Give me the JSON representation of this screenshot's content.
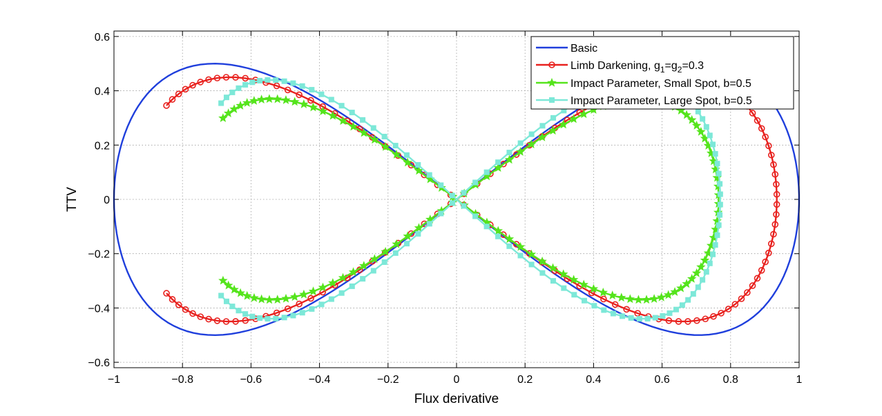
{
  "chart_data": {
    "type": "line",
    "title": "",
    "xlabel": "Flux derivative",
    "ylabel": "TTV",
    "xlim": [
      -1,
      1
    ],
    "ylim": [
      -0.62,
      0.62
    ],
    "grid": true,
    "legend_position": "top-right",
    "x_ticks": [
      -1,
      -0.8,
      -0.6,
      -0.4,
      -0.2,
      0,
      0.2,
      0.4,
      0.6,
      0.8,
      1
    ],
    "y_ticks": [
      -0.6,
      -0.4,
      -0.2,
      0,
      0.2,
      0.4,
      0.6
    ],
    "x_tick_labels": [
      "−1",
      "−0.8",
      "−0.6",
      "−0.4",
      "−0.2",
      "0",
      "0.2",
      "0.4",
      "0.6",
      "0.8",
      "1"
    ],
    "y_tick_labels": [
      "−0.6",
      "−0.4",
      "−0.2",
      "0",
      "0.2",
      "0.4",
      "0.6"
    ],
    "series": [
      {
        "name": "Basic",
        "legend": {
          "text": "Basic"
        },
        "color": "#1f3fdc",
        "marker": "none",
        "curve": {
          "kind": "param",
          "ax": 1.0,
          "ay": 0.5,
          "t0": 0,
          "t1": 6.2832,
          "n": 200
        }
      },
      {
        "name": "Limb Darkening",
        "legend": {
          "text": "Limb Darkening, g",
          "sub1": "1",
          "mid": "=g",
          "sub2": "2",
          "tail": "=0.3"
        },
        "color": "#e8211e",
        "marker": "circle",
        "curve": {
          "kind": "param",
          "ax": 0.935,
          "ay": 0.45,
          "t0": 0.438,
          "t1": 5.845,
          "n": 132
        }
      },
      {
        "name": "Impact Parameter, Small Spot, b=0.5",
        "legend": {
          "text": "Impact Parameter, Small Spot, b=0.5"
        },
        "color": "#55e41c",
        "marker": "star",
        "curve": {
          "kind": "param",
          "ax": 0.765,
          "ay": 0.37,
          "t0": 0.471,
          "t1": 5.812,
          "n": 124
        }
      },
      {
        "name": "Impact Parameter, Large Spot, b=0.5",
        "legend": {
          "text": "Impact Parameter, Large Spot, b=0.5"
        },
        "color": "#7de8d8",
        "marker": "square",
        "curve": {
          "kind": "param",
          "ax": 0.77,
          "ay": 0.44,
          "t0": 0.468,
          "t1": 5.815,
          "n": 124
        }
      }
    ]
  }
}
